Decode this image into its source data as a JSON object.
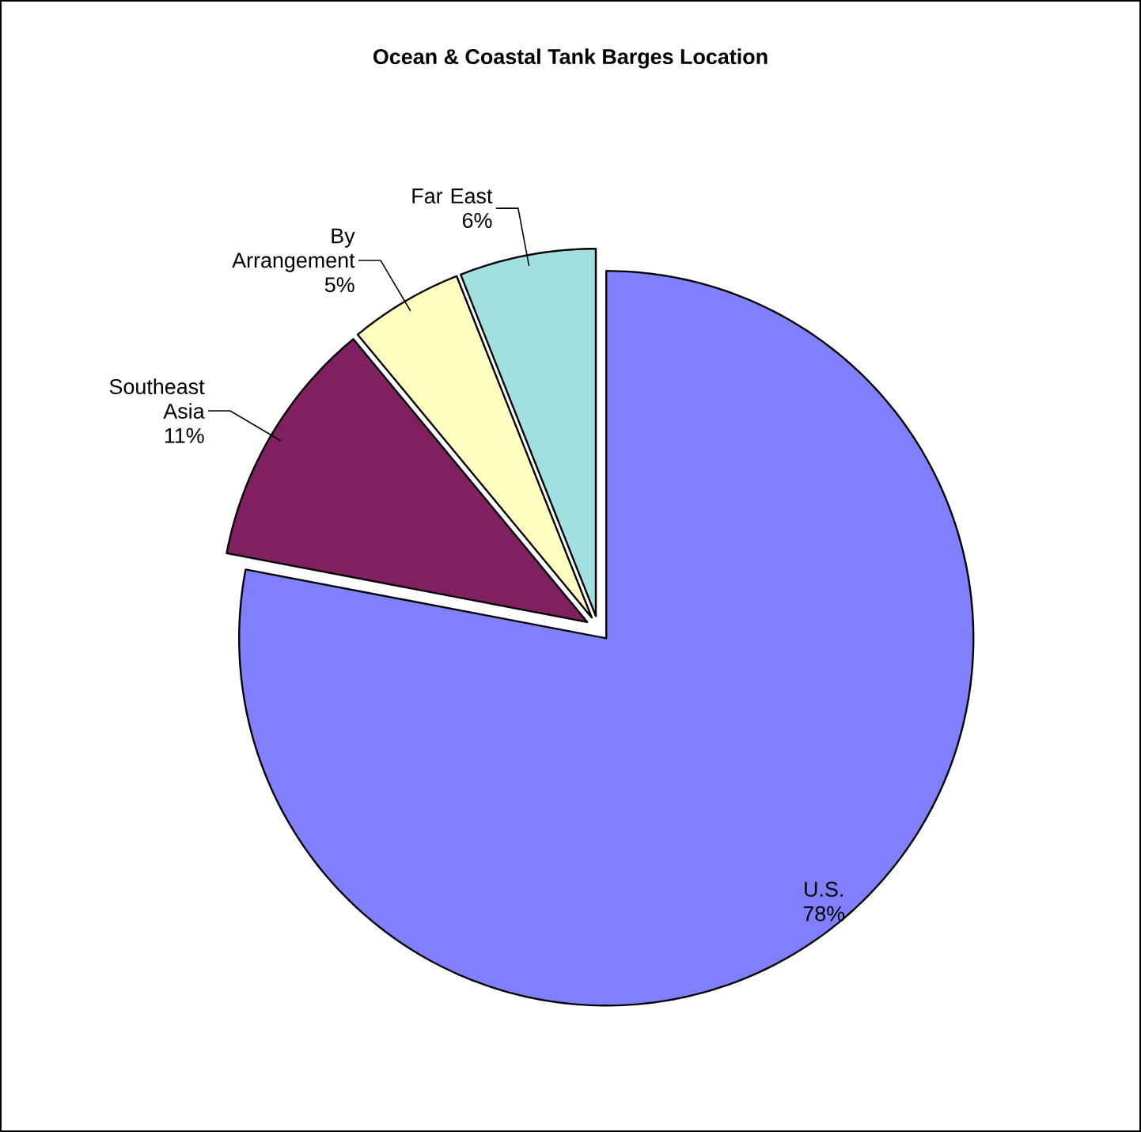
{
  "chart_data": {
    "type": "pie",
    "title": "Ocean & Coastal Tank Barges Location",
    "categories": [
      "U.S.",
      "Southeast Asia",
      "By Arrangement",
      "Far East"
    ],
    "values": [
      78,
      11,
      5,
      6
    ],
    "colors": [
      "#8080ff",
      "#802060",
      "#ffffc0",
      "#a0e0e0"
    ],
    "value_labels": [
      "78%",
      "11%",
      "5%",
      "6%"
    ]
  }
}
